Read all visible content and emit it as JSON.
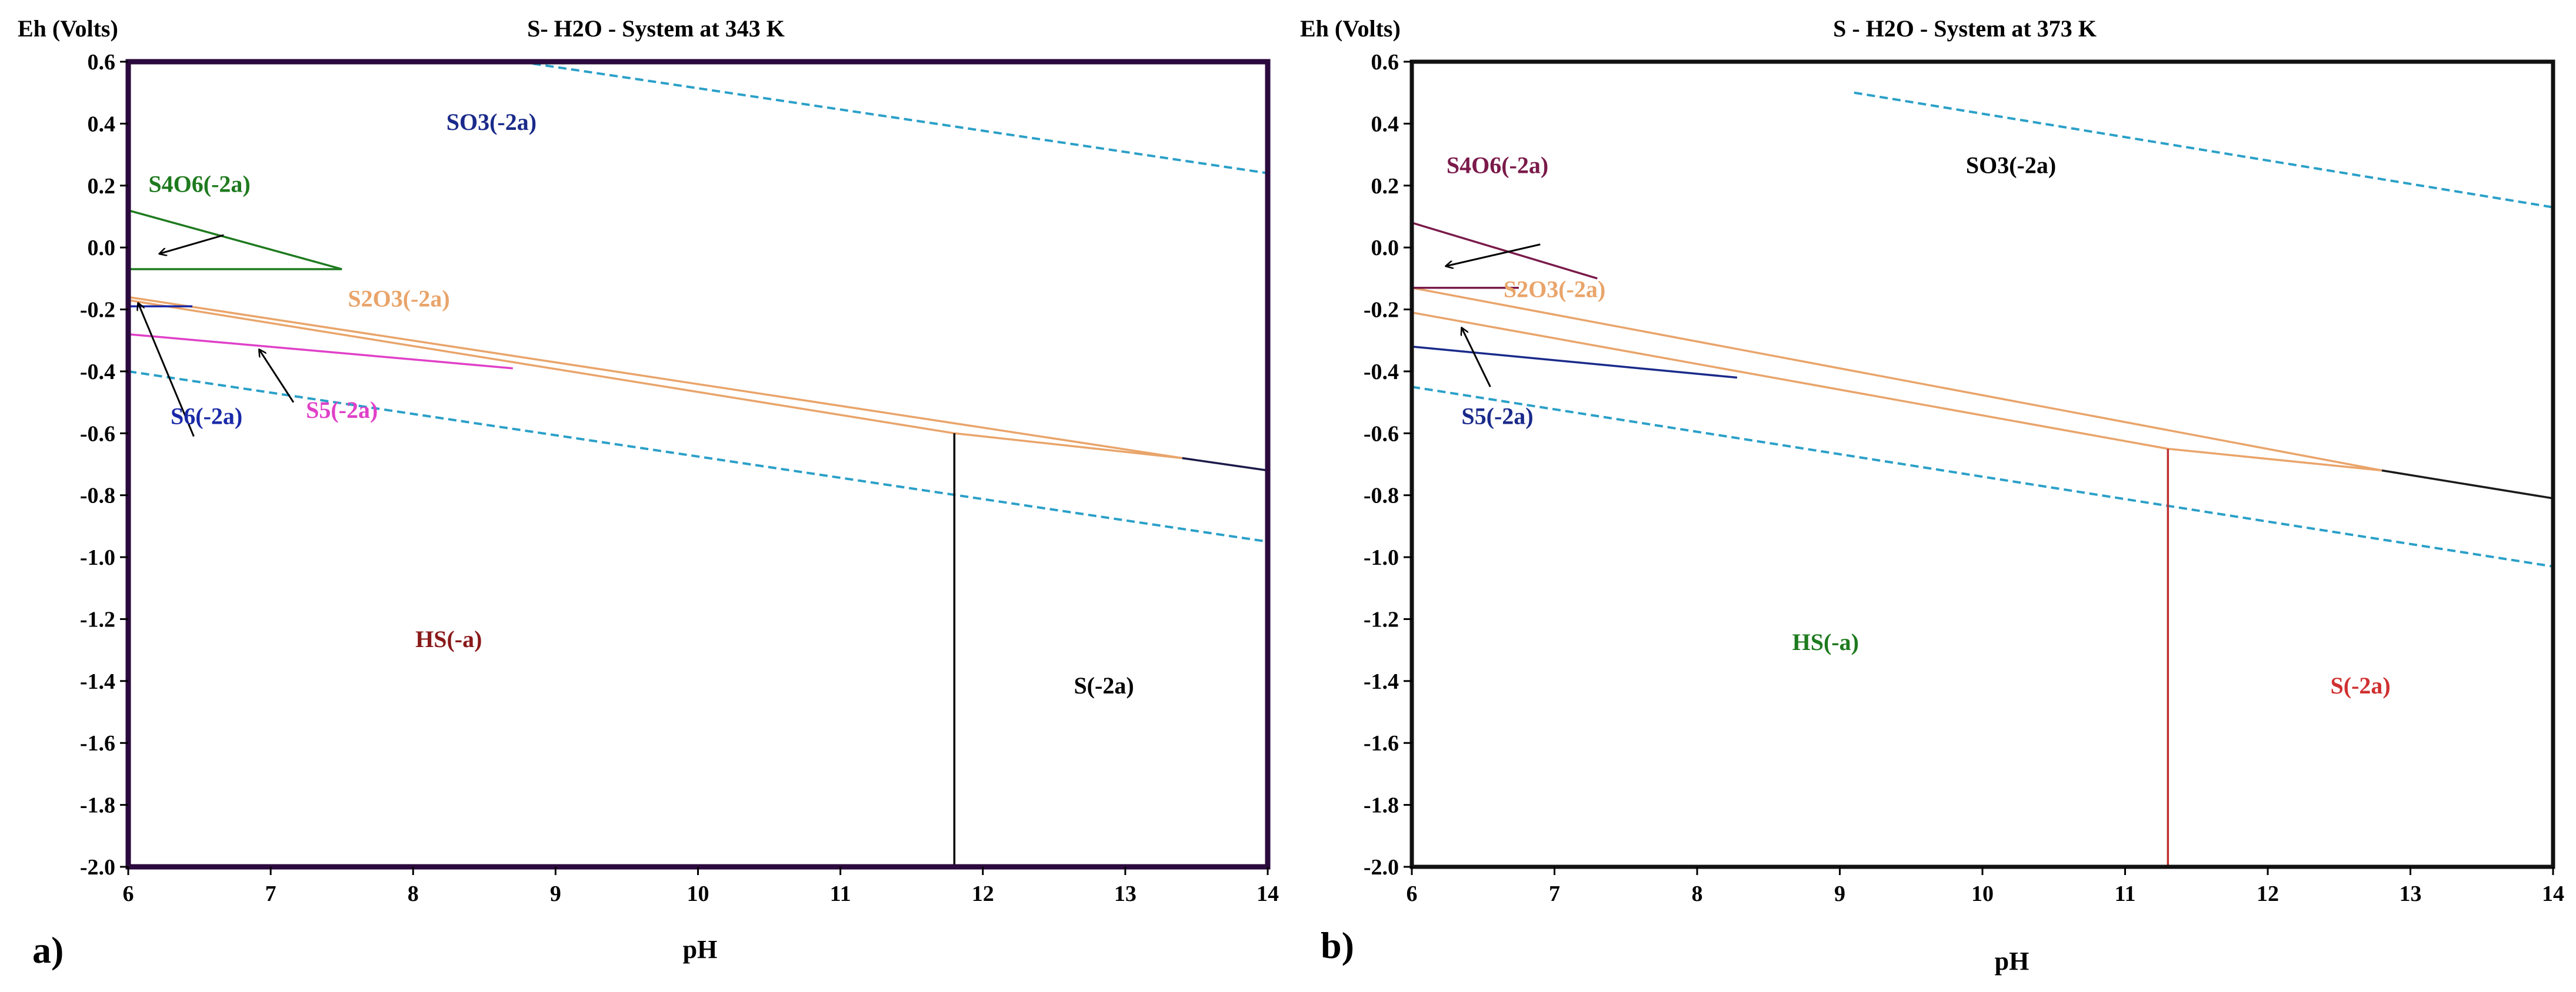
{
  "chart_data": [
    {
      "type": "line",
      "panel_label": "a)",
      "title": "S- H2O - System at 343 K",
      "xlabel": "pH",
      "ylabel": "Eh (Volts)",
      "xlim": [
        6,
        14
      ],
      "ylim": [
        -2.0,
        0.6
      ],
      "x_ticks": [
        "6",
        "7",
        "8",
        "9",
        "10",
        "11",
        "12",
        "13",
        "14"
      ],
      "y_ticks": [
        "0.6",
        "0.4",
        "0.2",
        "0.0",
        "-0.2",
        "-0.4",
        "-0.6",
        "-0.8",
        "-1.0",
        "-1.2",
        "-1.4",
        "-1.6",
        "-1.8",
        "-2.0"
      ],
      "frame_color": "#2b0a3d",
      "series": [
        {
          "name": "water-upper",
          "style": "dashed",
          "color": "#2aa0c8",
          "points": [
            [
              8.75,
              0.6
            ],
            [
              14,
              0.24
            ]
          ]
        },
        {
          "name": "water-lower",
          "style": "dashed",
          "color": "#2aa0c8",
          "points": [
            [
              6,
              -0.4
            ],
            [
              14,
              -0.95
            ]
          ]
        },
        {
          "name": "SO3-S2O3-boundary",
          "style": "solid",
          "color": "#e9a46a",
          "points": [
            [
              6,
              -0.16
            ],
            [
              13.4,
              -0.68
            ]
          ]
        },
        {
          "name": "S2O3-HS-boundary",
          "style": "solid",
          "color": "#e9a46a",
          "points": [
            [
              6,
              -0.17
            ],
            [
              11.8,
              -0.6
            ],
            [
              13.4,
              -0.68
            ]
          ]
        },
        {
          "name": "SO3-S-boundary",
          "style": "solid",
          "color": "#1a1a4a",
          "points": [
            [
              13.4,
              -0.68
            ],
            [
              14,
              -0.72
            ]
          ]
        },
        {
          "name": "HS-S-boundary",
          "style": "solid",
          "color": "#000000",
          "points": [
            [
              11.8,
              -0.6
            ],
            [
              11.8,
              -2.0
            ]
          ]
        },
        {
          "name": "S4O6-upper",
          "style": "solid",
          "color": "#1e7a1e",
          "points": [
            [
              6,
              0.12
            ],
            [
              7.5,
              -0.07
            ]
          ]
        },
        {
          "name": "S4O6-lower",
          "style": "solid",
          "color": "#1e7a1e",
          "points": [
            [
              6,
              -0.07
            ],
            [
              7.5,
              -0.07
            ]
          ]
        },
        {
          "name": "S5-boundary",
          "style": "solid",
          "color": "#e040c8",
          "points": [
            [
              6,
              -0.28
            ],
            [
              8.7,
              -0.39
            ]
          ]
        },
        {
          "name": "S6-boundary",
          "style": "solid",
          "color": "#1a2aa8",
          "points": [
            [
              6,
              -0.19
            ],
            [
              6.45,
              -0.19
            ]
          ]
        }
      ],
      "annotations": [
        {
          "text": "SO3(-2a)",
          "x": 8.55,
          "y": 0.38,
          "color": "#1a2a8a"
        },
        {
          "text": "S4O6(-2a)",
          "x": 6.5,
          "y": 0.18,
          "color": "#1e7a1e"
        },
        {
          "text": "S2O3(-2a)",
          "x": 7.9,
          "y": -0.19,
          "color": "#e9a46a"
        },
        {
          "text": "S6(-2a)",
          "x": 6.55,
          "y": -0.57,
          "color": "#1a2aa8"
        },
        {
          "text": "S5(-2a)",
          "x": 7.5,
          "y": -0.55,
          "color": "#e040c8"
        },
        {
          "text": "HS(-a)",
          "x": 8.25,
          "y": -1.29,
          "color": "#8a1a1a"
        },
        {
          "text": "S(-2a)",
          "x": 12.85,
          "y": -1.44,
          "color": "#000000"
        }
      ],
      "arrows": [
        {
          "from": [
            6.67,
            0.04
          ],
          "to": [
            6.22,
            -0.02
          ]
        },
        {
          "from": [
            6.46,
            -0.61
          ],
          "to": [
            6.07,
            -0.18
          ]
        },
        {
          "from": [
            7.16,
            -0.5
          ],
          "to": [
            6.92,
            -0.33
          ]
        }
      ]
    },
    {
      "type": "line",
      "panel_label": "b)",
      "title": "S - H2O - System at 373 K",
      "xlabel": "pH",
      "ylabel": "Eh (Volts)",
      "xlim": [
        6,
        14
      ],
      "ylim": [
        -2.0,
        0.6
      ],
      "x_ticks": [
        "6",
        "7",
        "8",
        "9",
        "10",
        "11",
        "12",
        "13",
        "14"
      ],
      "y_ticks": [
        "0.6",
        "0.4",
        "0.2",
        "0.0",
        "-0.2",
        "-0.4",
        "-0.6",
        "-0.8",
        "-1.0",
        "-1.2",
        "-1.4",
        "-1.6",
        "-1.8",
        "-2.0"
      ],
      "frame_color": "#111111",
      "series": [
        {
          "name": "water-upper",
          "style": "dashed",
          "color": "#2aa0c8",
          "points": [
            [
              9.1,
              0.5
            ],
            [
              14,
              0.13
            ]
          ]
        },
        {
          "name": "water-lower",
          "style": "dashed",
          "color": "#2aa0c8",
          "points": [
            [
              6,
              -0.45
            ],
            [
              14,
              -1.03
            ]
          ]
        },
        {
          "name": "SO3-S2O3-boundary",
          "style": "solid",
          "color": "#e9a46a",
          "points": [
            [
              6,
              -0.13
            ],
            [
              12.8,
              -0.72
            ]
          ]
        },
        {
          "name": "S2O3-HS-boundary",
          "style": "solid",
          "color": "#e9a46a",
          "points": [
            [
              6,
              -0.21
            ],
            [
              11.3,
              -0.65
            ],
            [
              12.8,
              -0.72
            ]
          ]
        },
        {
          "name": "SO3-S-boundary",
          "style": "solid",
          "color": "#1a1a1a",
          "points": [
            [
              12.8,
              -0.72
            ],
            [
              14,
              -0.81
            ]
          ]
        },
        {
          "name": "HS-S-boundary",
          "style": "solid",
          "color": "#c03030",
          "points": [
            [
              11.3,
              -0.65
            ],
            [
              11.3,
              -2.0
            ]
          ]
        },
        {
          "name": "S4O6-upper",
          "style": "solid",
          "color": "#7a1a4a",
          "points": [
            [
              6,
              0.08
            ],
            [
              7.3,
              -0.1
            ]
          ]
        },
        {
          "name": "S4O6-lower",
          "style": "solid",
          "color": "#7a1a4a",
          "points": [
            [
              6,
              -0.13
            ],
            [
              6.75,
              -0.13
            ]
          ]
        },
        {
          "name": "S5-boundary",
          "style": "solid",
          "color": "#1a2a8a",
          "points": [
            [
              6,
              -0.32
            ],
            [
              8.28,
              -0.42
            ]
          ]
        }
      ],
      "annotations": [
        {
          "text": "S4O6(-2a)",
          "x": 6.6,
          "y": 0.24,
          "color": "#7a1a4a"
        },
        {
          "text": "SO3(-2a)",
          "x": 10.2,
          "y": 0.24,
          "color": "#000000"
        },
        {
          "text": "S2O3(-2a)",
          "x": 7.0,
          "y": -0.16,
          "color": "#e9a46a"
        },
        {
          "text": "S5(-2a)",
          "x": 6.6,
          "y": -0.57,
          "color": "#1a2a8a"
        },
        {
          "text": "HS(-a)",
          "x": 8.9,
          "y": -1.3,
          "color": "#1e7a1e"
        },
        {
          "text": "S(-2a)",
          "x": 12.65,
          "y": -1.44,
          "color": "#d03030"
        }
      ],
      "arrows": [
        {
          "from": [
            6.9,
            0.01
          ],
          "to": [
            6.24,
            -0.06
          ]
        },
        {
          "from": [
            6.55,
            -0.45
          ],
          "to": [
            6.35,
            -0.26
          ]
        }
      ]
    }
  ]
}
